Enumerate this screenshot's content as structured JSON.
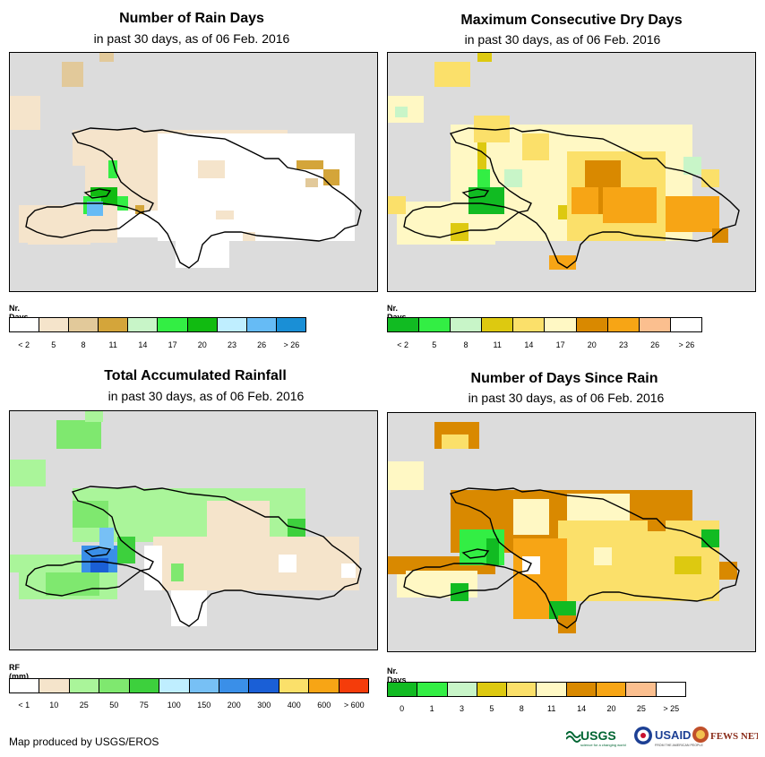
{
  "common_subtitle": "in past 30 days, as of 06 Feb. 2016",
  "panels": [
    {
      "id": "rain_days",
      "title": "Number of Rain Days",
      "legend_label": "Nr. Days",
      "legend_colors": [
        "#ffffff",
        "#f5e4cb",
        "#e2c99a",
        "#d4a53a",
        "#c8f5c8",
        "#33ee44",
        "#11bb11",
        "#bfeeff",
        "#66bbf5",
        "#1a8fd6"
      ],
      "legend_ticks": [
        "< 2",
        "5",
        "8",
        "11",
        "14",
        "17",
        "20",
        "23",
        "26",
        "> 26"
      ]
    },
    {
      "id": "dry_days",
      "title": "Maximum Consecutive Dry Days",
      "legend_label": "Nr. Days",
      "legend_colors": [
        "#11bb22",
        "#33ee44",
        "#c8f5c8",
        "#ddc910",
        "#fbe06a",
        "#fff8c4",
        "#d98900",
        "#f7a515",
        "#fbbf8f",
        "#ffffff"
      ],
      "legend_ticks": [
        "< 2",
        "5",
        "8",
        "11",
        "14",
        "17",
        "20",
        "23",
        "26",
        "> 26"
      ]
    },
    {
      "id": "rainfall",
      "title": "Total Accumulated Rainfall",
      "legend_label": "RF (mm)",
      "legend_colors": [
        "#ffffff",
        "#f5e4cb",
        "#aaf59a",
        "#7fe86f",
        "#3dd03d",
        "#bfeeff",
        "#77c0f5",
        "#3a8fe8",
        "#1a5fd6",
        "#fbe06a",
        "#f7a515",
        "#f53c0a"
      ],
      "legend_ticks": [
        "< 1",
        "10",
        "25",
        "50",
        "75",
        "100",
        "150",
        "200",
        "300",
        "400",
        "600",
        "> 600"
      ]
    },
    {
      "id": "days_since",
      "title": "Number of Days Since Rain",
      "legend_label": "Nr. Days",
      "legend_colors": [
        "#11bb22",
        "#33ee44",
        "#c8f5c8",
        "#ddc910",
        "#fbe06a",
        "#fff8c4",
        "#d98900",
        "#f7a515",
        "#fbbf8f",
        "#ffffff"
      ],
      "legend_ticks": [
        "0",
        "1",
        "3",
        "5",
        "8",
        "11",
        "14",
        "20",
        "25",
        "> 25"
      ]
    }
  ],
  "credit": "Map produced by USGS/EROS",
  "logos": {
    "usgs": "USGS",
    "usgs_tagline": "science for a changing world",
    "usaid": "USAID",
    "usaid_tagline": "FROM THE AMERICAN PEOPLE",
    "fewsnet": "FEWS NET"
  }
}
